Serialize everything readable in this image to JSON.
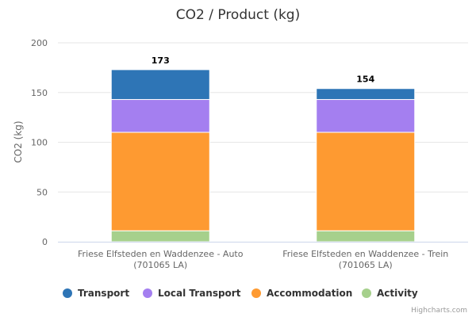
{
  "chart_data": {
    "type": "bar",
    "stacked": true,
    "title": "CO2 / Product (kg)",
    "ylabel": "CO2 (kg)",
    "xlabel": "",
    "ylim": [
      0,
      200
    ],
    "yticks": [
      0,
      50,
      100,
      150,
      200
    ],
    "grid": true,
    "legend_position": "bottom",
    "categories": [
      [
        "Friese Elfsteden en Waddenzee - Auto",
        "(701065 LA)"
      ],
      [
        "Friese Elfsteden en Waddenzee - Trein",
        "(701065 LA)"
      ]
    ],
    "series": [
      {
        "name": "Activity",
        "color": "#a6d08c",
        "values": [
          11,
          11
        ]
      },
      {
        "name": "Accommodation",
        "color": "#fe9a31",
        "values": [
          99,
          99
        ]
      },
      {
        "name": "Local Transport",
        "color": "#a47ff0",
        "values": [
          33,
          33
        ]
      },
      {
        "name": "Transport",
        "color": "#2e75b6",
        "values": [
          30,
          11
        ]
      }
    ],
    "legend_order": [
      "Transport",
      "Local Transport",
      "Accommodation",
      "Activity"
    ],
    "totals": [
      173,
      154
    ]
  },
  "credits": "Highcharts.com"
}
